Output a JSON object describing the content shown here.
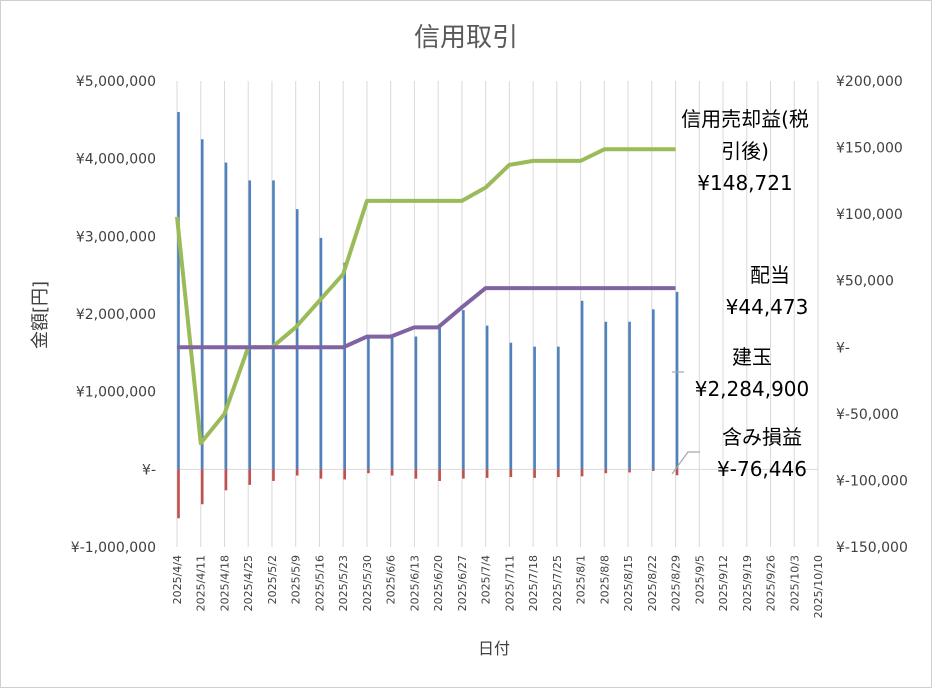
{
  "chart_data": {
    "type": "bar+line",
    "title": "信用取引",
    "xlabel": "日付",
    "ylabel": "金額[円]",
    "y_left_ticks": [
      "¥5,000,000",
      "¥4,000,000",
      "¥3,000,000",
      "¥2,000,000",
      "¥1,000,000",
      "¥-",
      "¥-1,000,000"
    ],
    "y_left_range": [
      -1000000,
      5000000
    ],
    "y_right_ticks": [
      "¥200,000",
      "¥150,000",
      "¥100,000",
      "¥50,000",
      "¥-",
      "¥-50,000",
      "¥-100,000",
      "¥-150,000"
    ],
    "y_right_range": [
      -150000,
      200000
    ],
    "categories": [
      "2025/4/4",
      "2025/4/11",
      "2025/4/18",
      "2025/4/25",
      "2025/5/2",
      "2025/5/9",
      "2025/5/16",
      "2025/5/23",
      "2025/5/30",
      "2025/6/6",
      "2025/6/13",
      "2025/6/20",
      "2025/6/27",
      "2025/7/4",
      "2025/7/11",
      "2025/7/18",
      "2025/7/25",
      "2025/8/1",
      "2025/8/8",
      "2025/8/15",
      "2025/8/22",
      "2025/8/29",
      "2025/9/5",
      "2025/9/12",
      "2025/9/19",
      "2025/9/26",
      "2025/10/3",
      "2025/10/10"
    ],
    "series": [
      {
        "name": "建玉",
        "type": "bar",
        "axis": "left",
        "color": "#4f81bd",
        "values": [
          4600000,
          4250000,
          3950000,
          3720000,
          3720000,
          3350000,
          2980000,
          2660000,
          1700000,
          1700000,
          1710000,
          1850000,
          2050000,
          1850000,
          1630000,
          1580000,
          1580000,
          2170000,
          1900000,
          1900000,
          2060000,
          2284900,
          null,
          null,
          null,
          null,
          null,
          null
        ]
      },
      {
        "name": "含み損益",
        "type": "bar",
        "axis": "left",
        "color": "#c0504d",
        "values": [
          -630000,
          -450000,
          -270000,
          -200000,
          -150000,
          -80000,
          -120000,
          -130000,
          -50000,
          -80000,
          -120000,
          -150000,
          -120000,
          -110000,
          -100000,
          -110000,
          -100000,
          -90000,
          -50000,
          -40000,
          -20000,
          -76446,
          null,
          null,
          null,
          null,
          null,
          null
        ]
      },
      {
        "name": "信用売却益(税引後)",
        "type": "line",
        "axis": "right",
        "color": "#9bbb59",
        "values": [
          98000,
          -72000,
          -50000,
          0,
          0,
          15000,
          35000,
          55000,
          110000,
          110000,
          110000,
          110000,
          110000,
          120000,
          137000,
          140000,
          140000,
          140000,
          148721,
          148721,
          148721,
          148721,
          null,
          null,
          null,
          null,
          null,
          null
        ]
      },
      {
        "name": "配当",
        "type": "line",
        "axis": "right",
        "color": "#8064a2",
        "values": [
          0,
          0,
          0,
          0,
          0,
          0,
          0,
          0,
          8000,
          8000,
          15000,
          15000,
          30000,
          44473,
          44473,
          44473,
          44473,
          44473,
          44473,
          44473,
          44473,
          44473,
          null,
          null,
          null,
          null,
          null,
          null
        ]
      }
    ],
    "annotations": [
      {
        "label": "信用売却益(税",
        "label2": "引後)",
        "value": "¥148,721"
      },
      {
        "label": "配当",
        "value": "¥44,473"
      },
      {
        "label": "建玉",
        "value": "¥2,284,900"
      },
      {
        "label": "含み損益",
        "value": "¥-76,446"
      }
    ]
  }
}
